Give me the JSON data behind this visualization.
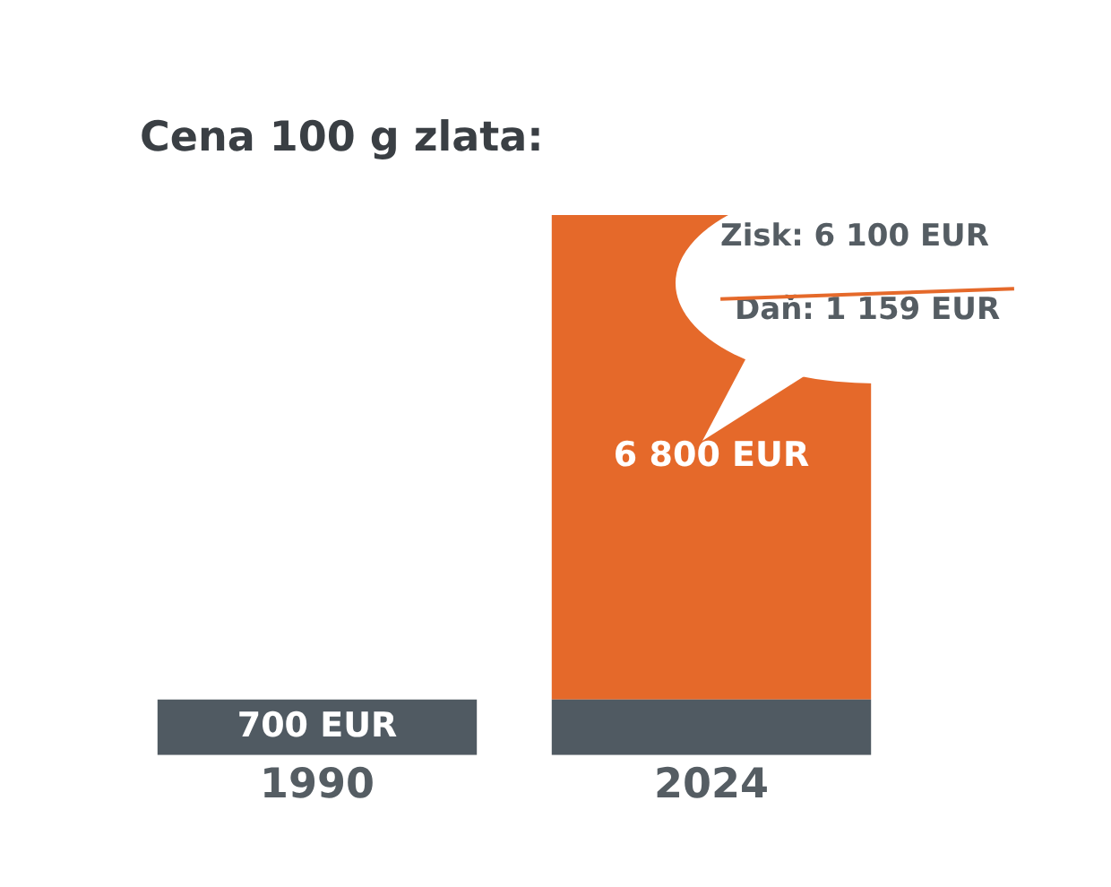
{
  "chart_data": {
    "type": "bar",
    "title": "Cena 100 g zlata:",
    "categories": [
      "1990",
      "2024"
    ],
    "stacked": true,
    "series": [
      {
        "color": "#505a62",
        "values": [
          700,
          700
        ],
        "value_labels": [
          "700 EUR",
          null
        ]
      },
      {
        "color": "#e5692a",
        "values": [
          null,
          6100
        ]
      }
    ],
    "totals": [
      null,
      "6 800 EUR"
    ],
    "annotations": [
      "Zisk: 6 100 EUR",
      "Daň: 1 159 EUR"
    ],
    "grid": false,
    "legend": false
  }
}
